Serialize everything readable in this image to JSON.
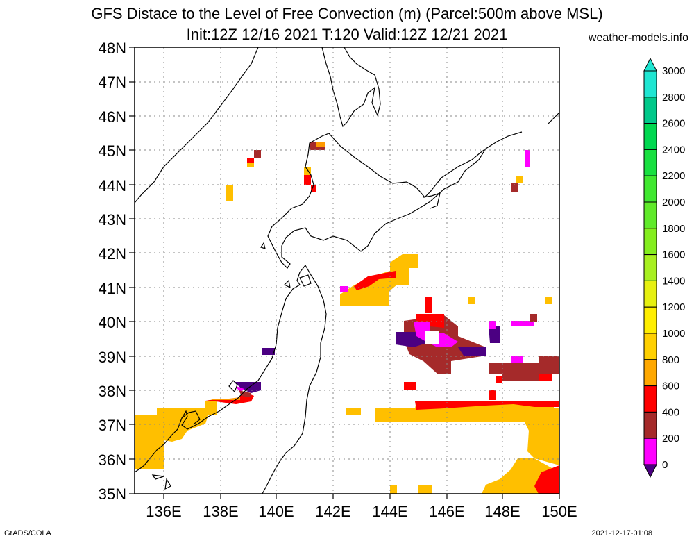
{
  "title_line1": "GFS Distace to the Level of Free Convection (m) (Parcel:500m above MSL)",
  "title_line2": "Init:12Z 12/16 2021 T:120 Valid:12Z 12/21 2021",
  "credit": "weather-models.info",
  "footer_left": "GrADS/COLA",
  "footer_right": "2021-12-17-01:08",
  "lat_labels": [
    "48N",
    "47N",
    "46N",
    "45N",
    "44N",
    "43N",
    "42N",
    "41N",
    "40N",
    "39N",
    "38N",
    "37N",
    "36N",
    "35N"
  ],
  "lon_labels": [
    "136E",
    "138E",
    "140E",
    "142E",
    "144E",
    "146E",
    "148E",
    "150E"
  ],
  "colorbar": {
    "labels": [
      "3000",
      "2800",
      "2600",
      "2400",
      "2200",
      "2000",
      "1800",
      "1600",
      "1400",
      "1200",
      "1000",
      "800",
      "600",
      "400",
      "200",
      "0"
    ],
    "colors": [
      "#1ee6d2",
      "#00c98a",
      "#00d850",
      "#18e040",
      "#40e830",
      "#60ea2a",
      "#84ee1e",
      "#a8f020",
      "#e6f010",
      "#ffee00",
      "#ffd000",
      "#ffa800",
      "#ff0000",
      "#a52a2a",
      "#ff00ff",
      "#4b0082"
    ]
  },
  "map": {
    "lon_range": [
      135,
      150
    ],
    "lat_range": [
      35,
      48
    ]
  }
}
